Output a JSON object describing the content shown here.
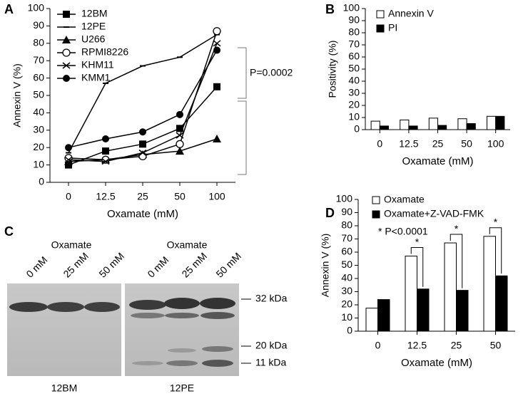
{
  "chart_data": [
    {
      "type": "line",
      "panel": "A",
      "y_label": "Annexin V (%)",
      "x_label": "Oxamate (mM)",
      "categories": [
        "0",
        "12.5",
        "25",
        "50",
        "100"
      ],
      "ylim": [
        0,
        100
      ],
      "yticks": [
        0,
        10,
        20,
        30,
        40,
        50,
        60,
        70,
        80,
        90,
        100
      ],
      "annotation": "P=0.0002",
      "series": [
        {
          "name": "12BM",
          "color": "#000000",
          "marker": "square",
          "values": [
            10,
            18,
            22,
            31,
            55
          ]
        },
        {
          "name": "12PE",
          "color": "#000000",
          "marker": "dash",
          "values": [
            17,
            57,
            67,
            72,
            85
          ]
        },
        {
          "name": "U266",
          "color": "#000000",
          "marker": "triangle",
          "values": [
            12,
            13,
            16,
            18,
            25
          ]
        },
        {
          "name": "RPMI8226",
          "color": "#000000",
          "marker": "open-circle",
          "values": [
            14,
            13,
            15,
            22,
            87
          ]
        },
        {
          "name": "KHM11",
          "color": "#000000",
          "marker": "x",
          "values": [
            13,
            12,
            17,
            27,
            80
          ]
        },
        {
          "name": "KMM1",
          "color": "#000000",
          "marker": "circle",
          "values": [
            20,
            25,
            29,
            39,
            76
          ]
        }
      ]
    },
    {
      "type": "bar",
      "panel": "B",
      "y_label": "Positivity (%)",
      "x_label": "Oxamate (mM)",
      "categories": [
        "0",
        "12.5",
        "25",
        "50",
        "100"
      ],
      "ylim": [
        0,
        100
      ],
      "yticks": [
        0,
        10,
        20,
        30,
        40,
        50,
        60,
        70,
        80,
        90,
        100
      ],
      "series": [
        {
          "name": "Annexin V",
          "color": "#ffffff",
          "values": [
            7,
            8,
            9.5,
            9,
            11
          ]
        },
        {
          "name": "PI",
          "color": "#000000",
          "values": [
            3,
            3,
            3.5,
            5,
            11
          ]
        }
      ]
    },
    {
      "type": "bar",
      "panel": "D",
      "y_label": "Annexin V (%)",
      "x_label": "Oxamate (mM)",
      "categories": [
        "0",
        "12.5",
        "25",
        "50"
      ],
      "ylim": [
        0,
        100
      ],
      "yticks": [
        0,
        10,
        20,
        30,
        40,
        50,
        60,
        70,
        80,
        90,
        100
      ],
      "annotation": "* P<0.0001",
      "significance_marks": [
        "*",
        "*",
        "*"
      ],
      "series": [
        {
          "name": "Oxamate",
          "color": "#ffffff",
          "values": [
            17.5,
            57,
            67,
            72
          ]
        },
        {
          "name": "Oxamate+Z-VAD-FMK",
          "color": "#000000",
          "values": [
            24,
            32,
            31,
            42
          ]
        }
      ]
    }
  ],
  "blot": {
    "panel": "C",
    "groups": [
      {
        "title": "Oxamate",
        "lanes": [
          "0 mM",
          "25 mM",
          "50 mM"
        ],
        "cell_line": "12BM"
      },
      {
        "title": "Oxamate",
        "lanes": [
          "0 mM",
          "25 mM",
          "50 mM"
        ],
        "cell_line": "12PE"
      }
    ],
    "markers": [
      "32 kDa",
      "20 kDa",
      "11 kDa"
    ]
  }
}
